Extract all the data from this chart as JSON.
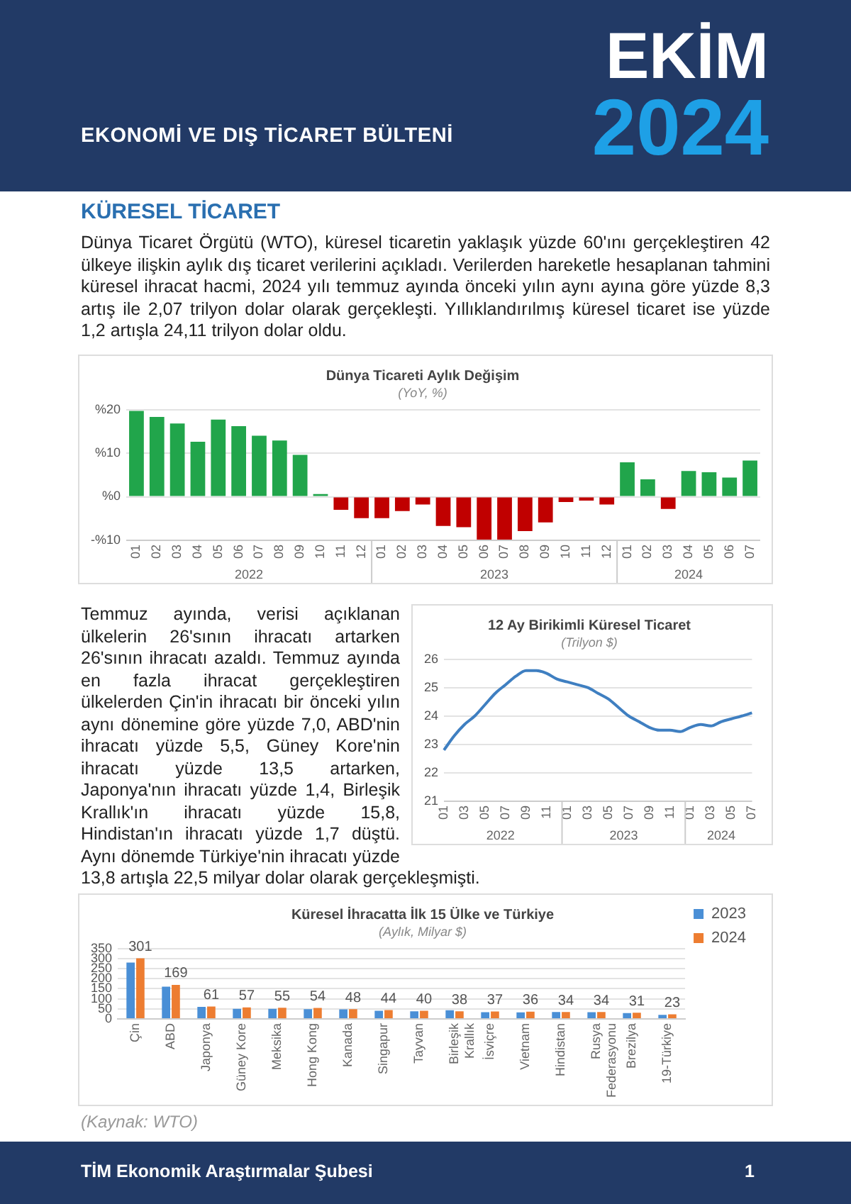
{
  "chart_data": [
    {
      "type": "bar",
      "title": "Dünya Ticareti Aylık Değişim",
      "subtitle": "(YoY, %)",
      "annotations": [
        "EKONOMİ VE DIŞ TİCARET BÜLTENİ",
        "EKİM",
        "2024",
        "KÜRESEL TİCARET",
        "Dünya Ticaret Örgütü (WTO), küresel ticaretin yaklaşık yüzde 60'ını gerçekleştiren 42 ülkeye ilişkin aylık dış ticaret verilerini açıkladı. Verilerden hareketle hesaplanan tahmini küresel ihracat hacmi, 2024 yılı temmuz ayında önceki yılın aynı ayına göre yüzde 8,3 artış ile 2,07 trilyon dolar olarak gerçekleşti. Yıllıklandırılmış küresel ticaret ise yüzde 1,2 artışla 24,11 trilyon dolar oldu.",
        "2022",
        "2023",
        "2024"
      ],
      "x": [
        "2022-01",
        "2022-02",
        "2022-03",
        "2022-04",
        "2022-05",
        "2022-06",
        "2022-07",
        "2022-08",
        "2022-09",
        "2022-10",
        "2022-11",
        "2022-12",
        "2023-01",
        "2023-02",
        "2023-03",
        "2023-04",
        "2023-05",
        "2023-06",
        "2023-07",
        "2023-08",
        "2023-09",
        "2023-10",
        "2023-11",
        "2023-12",
        "2024-01",
        "2024-02",
        "2024-03",
        "2024-04",
        "2024-05",
        "2024-06",
        "2024-07"
      ],
      "values": [
        19.7,
        18.3,
        16.8,
        12.6,
        17.7,
        16.2,
        14.0,
        12.9,
        9.6,
        0.6,
        -3.0,
        -4.9,
        -4.9,
        -3.3,
        -1.8,
        -6.7,
        -7.0,
        -10,
        -10,
        -7.9,
        -5.9,
        -1.2,
        -0.9,
        -1.8,
        7.9,
        4.0,
        -2.8,
        5.9,
        5.6,
        4.4,
        8.3
      ],
      "colors": [
        "#21a54b",
        "#21a54b",
        "#21a54b",
        "#21a54b",
        "#21a54b",
        "#21a54b",
        "#21a54b",
        "#21a54b",
        "#21a54b",
        "#21a54b",
        "#c00000",
        "#c00000",
        "#c00000",
        "#c00000",
        "#c00000",
        "#c00000",
        "#c00000",
        "#c00000",
        "#c00000",
        "#c00000",
        "#c00000",
        "#c00000",
        "#c00000",
        "#c00000",
        "#21a54b",
        "#21a54b",
        "#c00000",
        "#21a54b",
        "#21a54b",
        "#21a54b",
        "#21a54b"
      ],
      "xticks": [
        {
          "value": "2022-01",
          "label": "01"
        },
        {
          "value": "2022-02",
          "label": "02"
        },
        {
          "value": "2022-03",
          "label": "03"
        },
        {
          "value": "2022-04",
          "label": "04"
        },
        {
          "value": "2022-05",
          "label": "05"
        },
        {
          "value": "2022-06",
          "label": "06"
        },
        {
          "value": "2022-07",
          "label": "07"
        },
        {
          "value": "2022-08",
          "label": "08"
        },
        {
          "value": "2022-09",
          "label": "09"
        },
        {
          "value": "2022-10",
          "label": "10"
        },
        {
          "value": "2022-11",
          "label": "11"
        },
        {
          "value": "2022-12",
          "label": "12"
        },
        {
          "value": "2023-01",
          "label": "01"
        },
        {
          "value": "2023-02",
          "label": "02"
        },
        {
          "value": "2023-03",
          "label": "03"
        },
        {
          "value": "2023-04",
          "label": "04"
        },
        {
          "value": "2023-05",
          "label": "05"
        },
        {
          "value": "2023-06",
          "label": "06"
        },
        {
          "value": "2023-07",
          "label": "07"
        },
        {
          "value": "2023-08",
          "label": "08"
        },
        {
          "value": "2023-09",
          "label": "09"
        },
        {
          "value": "2023-10",
          "label": "10"
        },
        {
          "value": "2023-11",
          "label": "11"
        },
        {
          "value": "2023-12",
          "label": "12"
        },
        {
          "value": "2024-01",
          "label": "01"
        },
        {
          "value": "2024-02",
          "label": "02"
        },
        {
          "value": "2024-03",
          "label": "03"
        },
        {
          "value": "2024-04",
          "label": "04"
        },
        {
          "value": "2024-05",
          "label": "05"
        },
        {
          "value": "2024-06",
          "label": "06"
        },
        {
          "value": "2024-07",
          "label": "07"
        }
      ],
      "xlim": [
        "2021-12-16",
        "2024-07-16"
      ],
      "ylim": [
        -10,
        20
      ],
      "yticks": [
        {
          "value": -10,
          "label": "-%10"
        },
        {
          "value": 0,
          "label": "%0"
        },
        {
          "value": 10,
          "label": "%10"
        },
        {
          "value": 20,
          "label": "%20"
        }
      ],
      "grid": "y",
      "legend": false
    },
    {
      "type": "line",
      "title": "12 Ay Birikimli Küresel Ticaret",
      "subtitle": "(Trilyon $)",
      "annotations": [
        "Temmuz ayında, verisi açıklanan ülkelerin 26'sının ihracatı artarken 26'sının ihracatı azaldı. Temmuz ayında en fazla ihracat gerçekleştiren ülkelerden Çin'in ihracatı bir önceki yılın aynı dönemine göre yüzde 7,0, ABD'nin ihracatı yüzde 5,5, Güney Kore'nin ihracatı yüzde 13,5 artarken, Japonya'nın ihracatı yüzde 1,4, Birleşik Krallık'ın ihracatı yüzde 15,8, Hindistan'ın ihracatı yüzde 1,7 düştü. Aynı dönemde Türkiye'nin ihracatı yüzde 13,8 artışla 22,5 milyar dolar olarak gerçekleşmişti.",
        "2022",
        "2023",
        "2024"
      ],
      "x": [
        "2022-01",
        "2022-02",
        "2022-03",
        "2022-04",
        "2022-05",
        "2022-06",
        "2022-07",
        "2022-08",
        "2022-09",
        "2022-10",
        "2022-11",
        "2022-12",
        "2023-01",
        "2023-02",
        "2023-03",
        "2023-04",
        "2023-05",
        "2023-06",
        "2023-07",
        "2023-08",
        "2023-09",
        "2023-10",
        "2023-11",
        "2023-12",
        "2024-01",
        "2024-02",
        "2024-03",
        "2024-04",
        "2024-05",
        "2024-06",
        "2024-07"
      ],
      "series": [
        {
          "color": "#3f7fc1",
          "values": [
            22.8,
            23.3,
            23.7,
            24.0,
            24.4,
            24.8,
            25.1,
            25.4,
            25.6,
            25.6,
            25.5,
            25.3,
            25.2,
            25.1,
            25.0,
            24.8,
            24.6,
            24.3,
            24.0,
            23.8,
            23.6,
            23.5,
            23.5,
            23.45,
            23.6,
            23.7,
            23.65,
            23.8,
            23.9,
            24.0,
            24.11
          ]
        }
      ],
      "xticks": [
        {
          "value": "2022-01",
          "label": "01"
        },
        {
          "value": "2022-03",
          "label": "03"
        },
        {
          "value": "2022-05",
          "label": "05"
        },
        {
          "value": "2022-07",
          "label": "07"
        },
        {
          "value": "2022-09",
          "label": "09"
        },
        {
          "value": "2022-11",
          "label": "11"
        },
        {
          "value": "2023-01",
          "label": "01"
        },
        {
          "value": "2023-03",
          "label": "03"
        },
        {
          "value": "2023-05",
          "label": "05"
        },
        {
          "value": "2023-07",
          "label": "07"
        },
        {
          "value": "2023-09",
          "label": "09"
        },
        {
          "value": "2023-11",
          "label": "11"
        },
        {
          "value": "2024-01",
          "label": "01"
        },
        {
          "value": "2024-03",
          "label": "03"
        },
        {
          "value": "2024-05",
          "label": "05"
        },
        {
          "value": "2024-07",
          "label": "07"
        }
      ],
      "xlim": [
        "2022-01",
        "2024-07"
      ],
      "ylim": [
        21,
        26
      ],
      "yticks": [
        21,
        22,
        23,
        24,
        25,
        26
      ],
      "grid": "y",
      "marker": "none",
      "legend": false
    },
    {
      "type": "bar",
      "title": "Küresel İhracatta İlk 15 Ülke ve Türkiye",
      "subtitle": "(Aylık, Milyar $)",
      "annotations": [
        "(Kaynak: WTO)",
        "TİM Ekonomik Araştırmalar Şubesi",
        "1"
      ],
      "categories": [
        "Çin",
        "ABD",
        "Japonya",
        "Güney Kore",
        "Meksika",
        "Hong Kong",
        "Kanada",
        "Singapur",
        "Tayvan",
        "Birleşik\nKrallık",
        "İsviçre",
        "Vietnam",
        "Hindistan",
        "Rusya\nFederasyonu",
        "Brezilya",
        "19-Türkiye"
      ],
      "series": [
        {
          "name": "2023",
          "color": "#4a8fd6",
          "values": [
            280,
            160,
            60,
            50,
            50,
            48,
            47,
            40,
            38,
            43,
            33,
            32,
            34,
            33,
            29,
            20
          ]
        },
        {
          "name": "2024",
          "color": "#ed7d31",
          "values": [
            301,
            169,
            61,
            57,
            55,
            54,
            48,
            44,
            40,
            38,
            37,
            36,
            34,
            34,
            31,
            23
          ],
          "value_labels": [
            "301",
            "169",
            "61",
            "57",
            "55",
            "54",
            "48",
            "44",
            "40",
            "38",
            "37",
            "36",
            "34",
            "34",
            "31",
            "23"
          ]
        }
      ],
      "ylim": [
        0,
        350
      ],
      "yticks": [
        0,
        50,
        100,
        150,
        200,
        250,
        300,
        350
      ],
      "grid": "y",
      "legend": "top right"
    }
  ]
}
